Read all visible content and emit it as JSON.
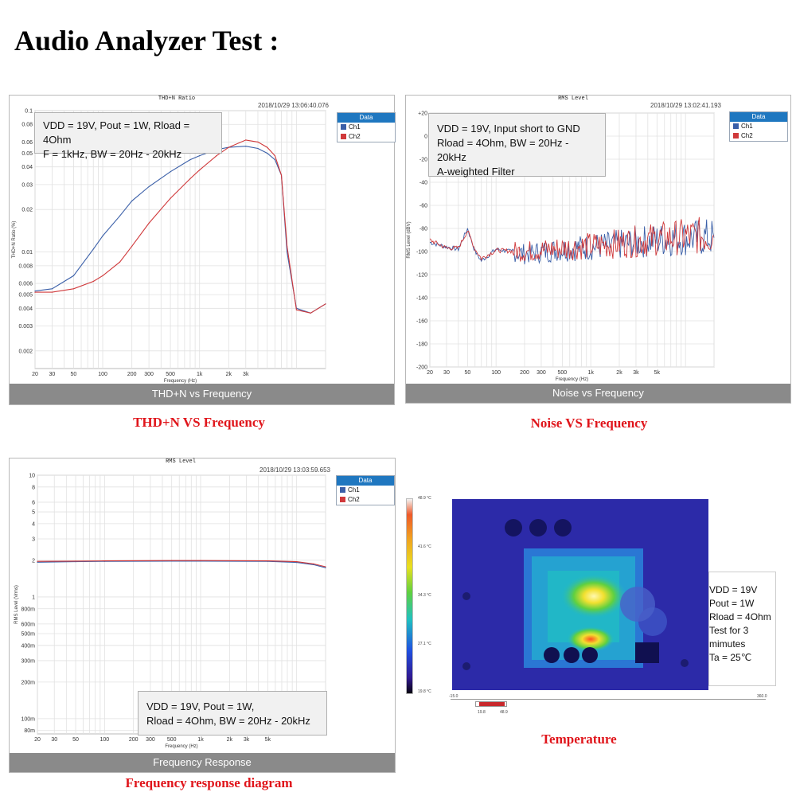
{
  "page": {
    "title": "Audio Analyzer Test :"
  },
  "legend": {
    "header": "Data",
    "ch1": "Ch1",
    "ch2": "Ch2",
    "ch1_color": "#3a5fa8",
    "ch2_color": "#d0393b"
  },
  "thd": {
    "chart_title": "THD+N Ratio",
    "timestamp": "2018/10/29 13:06:40.076",
    "note_lines": [
      "VDD = 19V, Pout = 1W, Rload = 4Ohm",
      "F = 1kHz, BW = 20Hz - 20kHz"
    ],
    "bar_label": "THD+N vs Frequency",
    "caption": "THD+N VS Frequency"
  },
  "noise": {
    "chart_title": "RMS Level",
    "timestamp": "2018/10/29 13:02:41.193",
    "note_lines": [
      "VDD = 19V, Input short to GND",
      "Rload = 4Ohm, BW = 20Hz - 20kHz",
      "A-weighted Filter"
    ],
    "bar_label": "Noise vs Frequency",
    "caption": "Noise VS Frequency"
  },
  "freq": {
    "chart_title": "RMS Level",
    "timestamp": "2018/10/29 13:03:59.653",
    "note_lines": [
      "VDD = 19V, Pout = 1W,",
      "Rload = 4Ohm, BW = 20Hz - 20kHz"
    ],
    "bar_label": "Frequency Response",
    "caption": "Frequency response diagram"
  },
  "thermal": {
    "scale_labels": [
      "48.9 °C",
      "41.6 °C",
      "34.3 °C",
      "27.1 °C",
      "19.8 °C"
    ],
    "range_min": "-15.0",
    "range_max": "360.0",
    "range_low": "19.8",
    "range_high": "48.9",
    "note_lines": [
      "VDD = 19V",
      "Pout = 1W",
      "Rload = 4Ohm",
      "Test for 3",
      "mimutes",
      "Ta = 25℃"
    ],
    "caption": "Temperature"
  },
  "chart_data": [
    {
      "type": "line",
      "title": "THD+N Ratio",
      "xlabel": "Frequency (Hz)",
      "ylabel": "THD+N Ratio (%)",
      "xscale": "log",
      "yscale": "log",
      "xlim": [
        20,
        20000
      ],
      "ylim": [
        0.0015,
        0.1
      ],
      "xticks": [
        "20",
        "30",
        "50",
        "100",
        "200",
        "300",
        "500",
        "1k",
        "2k",
        "3k"
      ],
      "yticks": [
        "0.1",
        "0.08",
        "0.06",
        "0.05",
        "0.04",
        "0.03",
        "0.02",
        "0.01",
        "0.008",
        "0.006",
        "0.005",
        "0.004",
        "0.003",
        "0.002"
      ],
      "grid": true,
      "legend": "top-right",
      "series": [
        {
          "name": "Ch1",
          "x": [
            20,
            30,
            50,
            80,
            100,
            150,
            200,
            300,
            500,
            800,
            1000,
            1500,
            2000,
            3000,
            4000,
            5000,
            6000,
            7000,
            8000,
            10000,
            14000,
            20000
          ],
          "y": [
            0.0053,
            0.0055,
            0.0068,
            0.0105,
            0.013,
            0.018,
            0.023,
            0.029,
            0.037,
            0.045,
            0.048,
            0.053,
            0.055,
            0.056,
            0.054,
            0.05,
            0.045,
            0.035,
            0.01,
            0.004,
            0.0037,
            0.0043
          ]
        },
        {
          "name": "Ch2",
          "x": [
            20,
            30,
            50,
            80,
            100,
            150,
            200,
            300,
            500,
            800,
            1000,
            1500,
            2000,
            3000,
            4000,
            5000,
            6000,
            7000,
            8000,
            10000,
            14000,
            20000
          ],
          "y": [
            0.0052,
            0.0052,
            0.0055,
            0.0062,
            0.0068,
            0.0085,
            0.011,
            0.016,
            0.024,
            0.033,
            0.038,
            0.048,
            0.055,
            0.062,
            0.06,
            0.055,
            0.048,
            0.035,
            0.011,
            0.0039,
            0.0037,
            0.0043
          ]
        }
      ]
    },
    {
      "type": "line",
      "title": "RMS Level",
      "xlabel": "Frequency (Hz)",
      "ylabel": "RMS Level (dBV)",
      "xscale": "log",
      "xlim": [
        20,
        20000
      ],
      "ylim": [
        -200,
        20
      ],
      "xticks": [
        "20",
        "30",
        "50",
        "100",
        "200",
        "300",
        "500",
        "1k",
        "2k",
        "3k",
        "5k"
      ],
      "yticks": [
        "+20",
        "0",
        "-20",
        "-40",
        "-60",
        "-80",
        "-100",
        "-120",
        "-140",
        "-160",
        "-180",
        "-200"
      ],
      "grid": true,
      "legend": "top-right",
      "series": [
        {
          "name": "Ch1",
          "x": [
            20,
            30,
            40,
            50,
            60,
            70,
            100,
            200,
            500,
            1000,
            2000,
            5000,
            10000,
            20000
          ],
          "y": [
            -92,
            -96,
            -98,
            -80,
            -100,
            -108,
            -98,
            -102,
            -98,
            -96,
            -94,
            -90,
            -88,
            -88
          ]
        },
        {
          "name": "Ch2",
          "x": [
            20,
            30,
            40,
            50,
            60,
            70,
            100,
            200,
            500,
            1000,
            2000,
            5000,
            10000,
            20000
          ],
          "y": [
            -90,
            -97,
            -97,
            -82,
            -98,
            -106,
            -99,
            -100,
            -97,
            -95,
            -93,
            -89,
            -87,
            -86
          ]
        }
      ]
    },
    {
      "type": "line",
      "title": "RMS Level",
      "xlabel": "Frequency (Hz)",
      "ylabel": "RMS Level (Vrms)",
      "xscale": "log",
      "yscale": "log",
      "xlim": [
        20,
        20000
      ],
      "ylim": [
        0.075,
        10
      ],
      "xticks": [
        "20",
        "30",
        "50",
        "100",
        "200",
        "300",
        "500",
        "1k",
        "2k",
        "3k",
        "5k"
      ],
      "yticks": [
        "10",
        "8",
        "6",
        "5",
        "4",
        "3",
        "2",
        "1",
        "800m",
        "600m",
        "500m",
        "400m",
        "300m",
        "200m",
        "100m",
        "80m"
      ],
      "grid": true,
      "legend": "top-right",
      "series": [
        {
          "name": "Ch1",
          "x": [
            20,
            50,
            100,
            500,
            1000,
            5000,
            10000,
            15000,
            20000
          ],
          "y": [
            1.93,
            1.95,
            1.96,
            1.97,
            1.97,
            1.96,
            1.92,
            1.84,
            1.74
          ]
        },
        {
          "name": "Ch2",
          "x": [
            20,
            50,
            100,
            500,
            1000,
            5000,
            10000,
            15000,
            20000
          ],
          "y": [
            1.96,
            1.97,
            1.98,
            1.99,
            1.99,
            1.98,
            1.95,
            1.87,
            1.77
          ]
        }
      ]
    }
  ]
}
